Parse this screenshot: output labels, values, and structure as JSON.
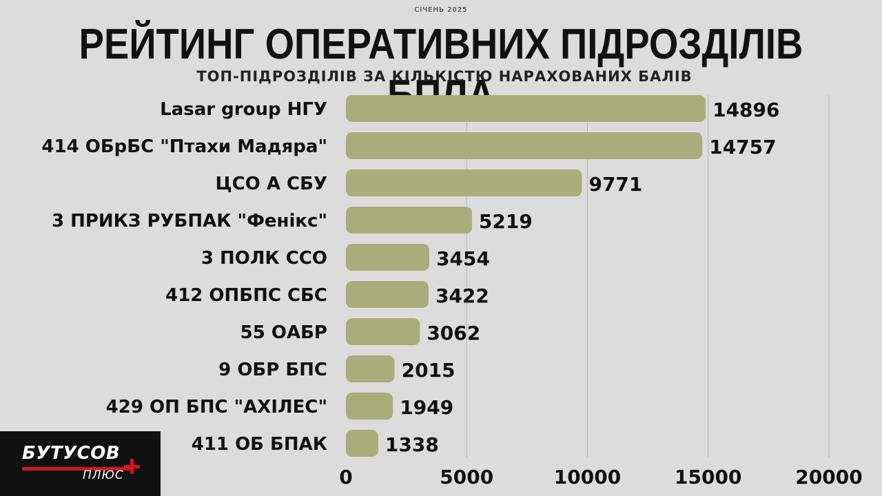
{
  "header": {
    "overline": "СІЧЕНЬ 2025",
    "title": "РЕЙТИНГ ОПЕРАТИВНИХ ПІДРОЗДІЛІВ БПЛА",
    "subtitle": "ТОП-ПІДРОЗДІЛІВ ЗА КІЛЬКІСТЮ НАРАХОВАНИХ БАЛІВ"
  },
  "logo": {
    "main": "БУТУСОВ",
    "sub": "ПЛЮС",
    "accent_color": "#d4161c"
  },
  "chart_data": {
    "type": "bar",
    "orientation": "horizontal",
    "categories": [
      "Lasar group НГУ",
      "414 ОБрБС \"Птахи Мадяра\"",
      "ЦСО А СБУ",
      "3 ПРИКЗ РУБПАК \"Фенікс\"",
      "3 ПОЛК ССО",
      "412 ОПБПС СБС",
      "55 ОАБР",
      "9 ОБР БПС",
      "429 ОП БПС \"АХІЛЕС\"",
      "411 ОБ БПАК"
    ],
    "values": [
      14896,
      14757,
      9771,
      5219,
      3454,
      3422,
      3062,
      2015,
      1949,
      1338
    ],
    "xlim": [
      0,
      20000
    ],
    "xticks": [
      "0",
      "5000",
      "10000",
      "15000",
      "20000"
    ],
    "bar_color": "#a8ad7b",
    "grid": true,
    "data_labels": true
  }
}
